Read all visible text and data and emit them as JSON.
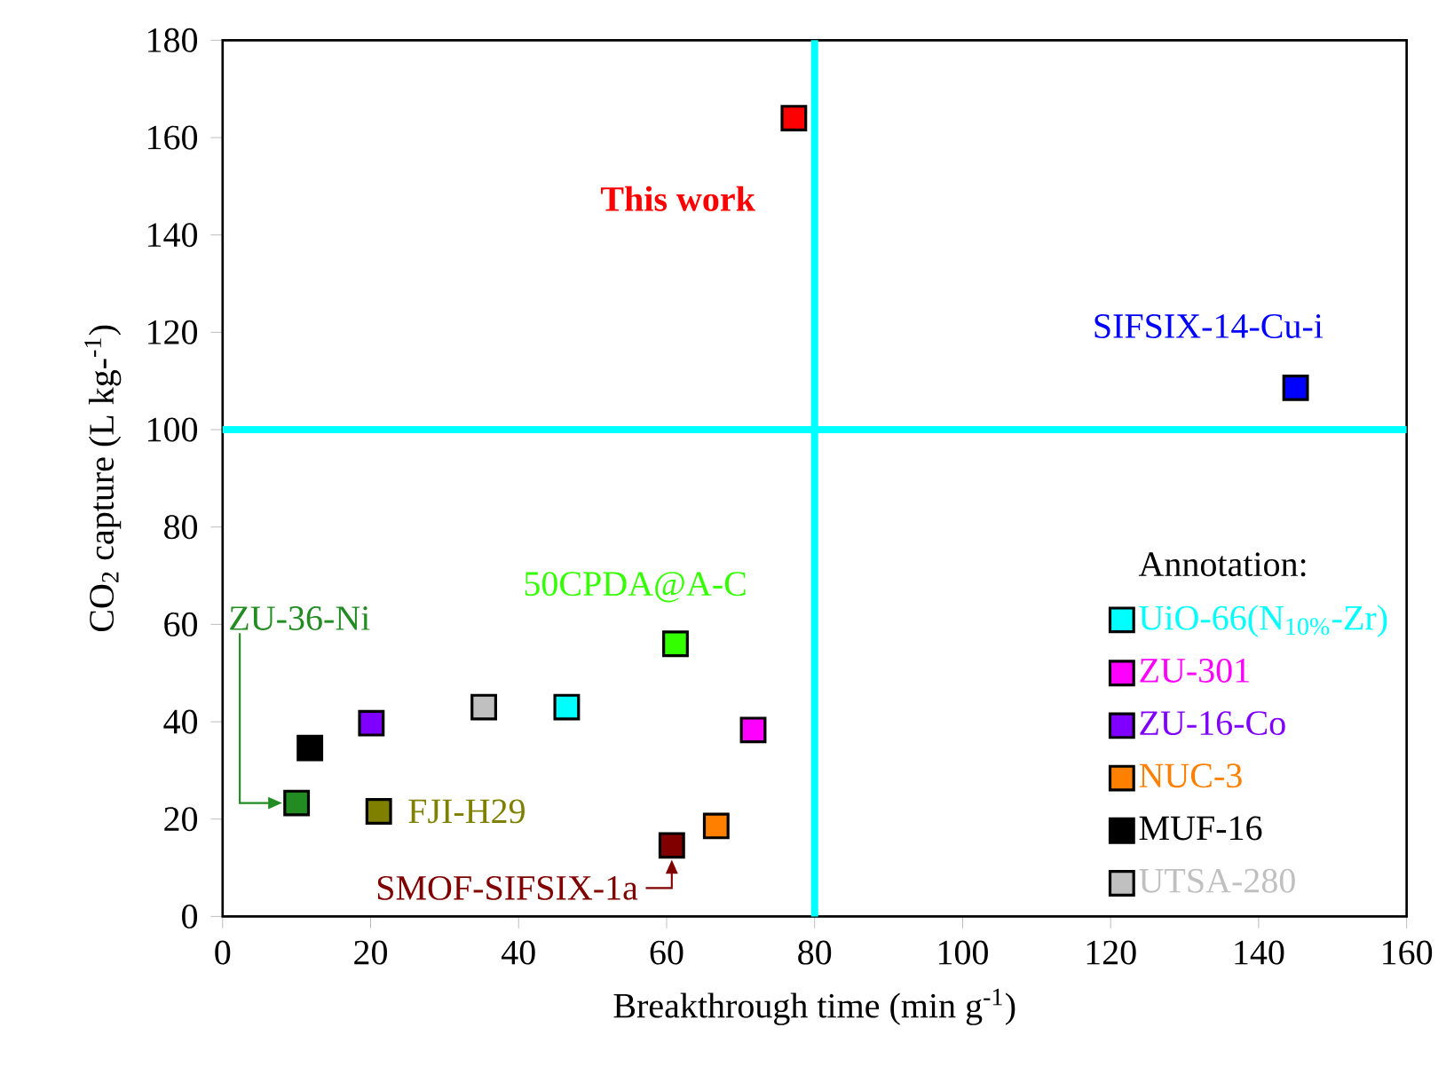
{
  "chart_data": {
    "type": "scatter",
    "xlabel": "Breakthrough time (min g$^{-1}$)",
    "ylabel": "CO$_{2}$ capture (L kg-$^{-1}$)",
    "legend_title": "Annotation:",
    "xlim": [
      0,
      160
    ],
    "xticks": [
      0,
      20,
      40,
      60,
      80,
      100,
      120,
      140,
      160
    ],
    "ylim": [
      0,
      180
    ],
    "yticks": [
      0,
      20,
      40,
      60,
      80,
      100,
      120,
      140,
      160,
      180
    ],
    "marker": "square",
    "legend": "bottom right",
    "series": [
      {
        "color": "#ff0000",
        "x": [
          77.2
        ],
        "values": [
          164
        ]
      },
      {
        "color": "#0000ff",
        "x": [
          145
        ],
        "values": [
          108.6
        ]
      },
      {
        "color": "#33ff00",
        "x": [
          61.2
        ],
        "values": [
          56
        ]
      },
      {
        "color": "#228b22",
        "x": [
          10
        ],
        "values": [
          23.3
        ]
      },
      {
        "color": "#808000",
        "x": [
          21.1
        ],
        "values": [
          21.6
        ]
      },
      {
        "color": "#800000",
        "x": [
          60.7
        ],
        "values": [
          14.6
        ]
      },
      {
        "name": "UiO-66(N$_{10%}$-Zr)",
        "color": "#00ffff",
        "x": [
          46.5
        ],
        "values": [
          43
        ]
      },
      {
        "name": "ZU-301",
        "color": "#ff00ff",
        "x": [
          71.7
        ],
        "values": [
          38.3
        ]
      },
      {
        "name": "ZU-16-Co",
        "color": "#8000ff",
        "x": [
          20.1
        ],
        "values": [
          39.7
        ]
      },
      {
        "name": "NUC-3",
        "color": "#ff8000",
        "x": [
          66.7
        ],
        "values": [
          18.6
        ]
      },
      {
        "name": "MUF-16",
        "color": "#000000",
        "x": [
          11.8
        ],
        "values": [
          34.6
        ]
      },
      {
        "name": "UTSA-280",
        "color": "#c0c0c0",
        "x": [
          35.3
        ],
        "values": [
          43
        ]
      }
    ],
    "annotations": [
      {
        "text": "This work",
        "x": 77.2,
        "y": 164
      },
      {
        "text": "SIFSIX-14-Cu-i",
        "x": 145,
        "y": 108.6
      },
      {
        "text": "50CPDA@A-C",
        "x": 61.2,
        "y": 56
      },
      "ZU-36-Ni",
      {
        "text": "FJI-H29",
        "x": 21.1,
        "y": 21.6
      },
      {
        "text": "SMOF-SIFSIX-1a",
        "x": 60.7,
        "y": 14.6
      }
    ],
    "ref_lines": [
      {
        "axis": "x",
        "value": 80,
        "color": "#00ffff"
      },
      {
        "axis": "y",
        "value": 100,
        "color": "#00ffff"
      }
    ]
  }
}
